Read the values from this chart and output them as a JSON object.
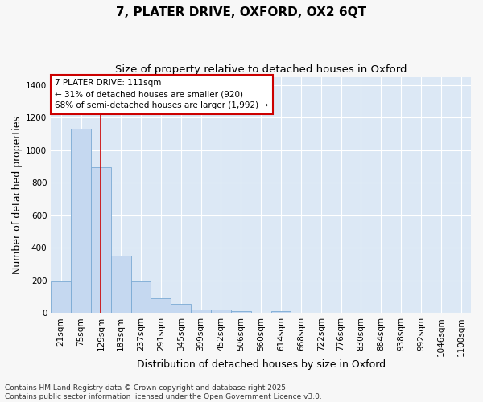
{
  "title1": "7, PLATER DRIVE, OXFORD, OX2 6QT",
  "title2": "Size of property relative to detached houses in Oxford",
  "xlabel": "Distribution of detached houses by size in Oxford",
  "ylabel": "Number of detached properties",
  "bar_labels": [
    "21sqm",
    "75sqm",
    "129sqm",
    "183sqm",
    "237sqm",
    "291sqm",
    "345sqm",
    "399sqm",
    "452sqm",
    "506sqm",
    "560sqm",
    "614sqm",
    "668sqm",
    "722sqm",
    "776sqm",
    "830sqm",
    "884sqm",
    "938sqm",
    "992sqm",
    "1046sqm",
    "1100sqm"
  ],
  "bar_values": [
    195,
    1130,
    895,
    350,
    195,
    90,
    55,
    20,
    20,
    12,
    0,
    12,
    0,
    0,
    0,
    0,
    0,
    0,
    0,
    0,
    0
  ],
  "bar_color": "#c5d8f0",
  "bar_edge_color": "#7aaad4",
  "fig_bg_color": "#f7f7f7",
  "plot_bg_color": "#dce8f5",
  "grid_color": "#ffffff",
  "vline_x": 2.0,
  "vline_color": "#cc0000",
  "annotation_line1": "7 PLATER DRIVE: 111sqm",
  "annotation_line2": "← 31% of detached houses are smaller (920)",
  "annotation_line3": "68% of semi-detached houses are larger (1,992) →",
  "annotation_box_color": "#ffffff",
  "annotation_border_color": "#cc0000",
  "ylim": [
    0,
    1450
  ],
  "yticks": [
    0,
    200,
    400,
    600,
    800,
    1000,
    1200,
    1400
  ],
  "footer_line1": "Contains HM Land Registry data © Crown copyright and database right 2025.",
  "footer_line2": "Contains public sector information licensed under the Open Government Licence v3.0.",
  "title1_fontsize": 11,
  "title2_fontsize": 9.5,
  "xlabel_fontsize": 9,
  "ylabel_fontsize": 9,
  "tick_fontsize": 7.5,
  "annotation_fontsize": 7.5,
  "footer_fontsize": 6.5
}
